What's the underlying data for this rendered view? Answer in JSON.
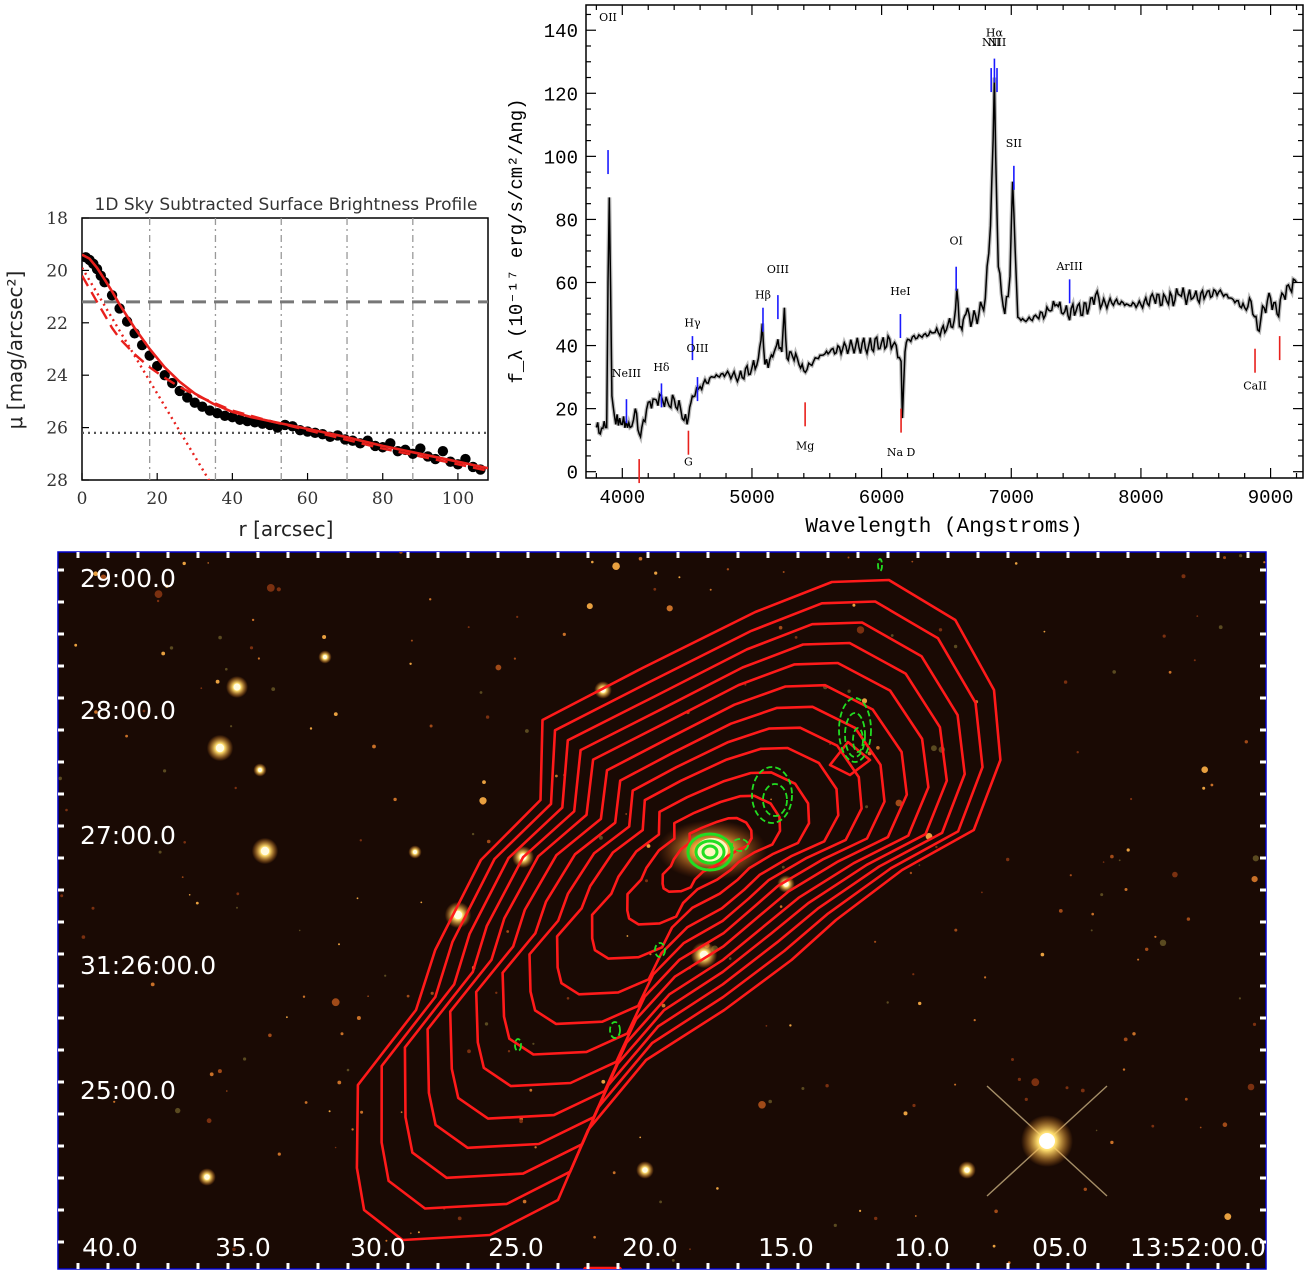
{
  "chart_data": [
    {
      "type": "scatter",
      "title": "1D Sky Subtracted Surface Brightness Profile",
      "xlabel": "r [arcsec]",
      "ylabel": "μ [mag/arcsec²]",
      "xlim": [
        0,
        108
      ],
      "ylim": [
        28,
        18
      ],
      "x_ticks": [
        0,
        20,
        40,
        60,
        80,
        100
      ],
      "y_ticks": [
        18,
        20,
        22,
        24,
        26,
        28
      ],
      "grid": "dash-dot vertical",
      "reference_lines": {
        "dashed": 21.2,
        "dotted": 26.2
      },
      "series": [
        {
          "style": "points",
          "color": "#000000",
          "x": [
            1,
            2,
            3,
            4,
            5,
            6,
            8,
            10,
            12,
            14,
            16,
            18,
            20,
            22,
            24,
            26,
            28,
            30,
            32,
            34,
            36,
            38,
            40,
            42,
            44,
            46,
            48,
            50,
            52,
            54,
            56,
            58,
            60,
            62,
            64,
            66,
            68,
            70,
            72,
            74,
            76,
            78,
            80,
            82,
            84,
            86,
            88,
            90,
            92,
            94,
            96,
            98,
            100,
            102,
            104,
            106
          ],
          "y": [
            19.5,
            19.6,
            19.75,
            19.95,
            20.2,
            20.45,
            20.95,
            21.45,
            21.95,
            22.4,
            22.85,
            23.25,
            23.65,
            24.0,
            24.3,
            24.6,
            24.85,
            25.05,
            25.2,
            25.35,
            25.45,
            25.55,
            25.6,
            25.7,
            25.75,
            25.8,
            25.85,
            25.9,
            26.0,
            25.9,
            25.95,
            26.1,
            26.15,
            26.2,
            26.25,
            26.35,
            26.3,
            26.45,
            26.5,
            26.6,
            26.5,
            26.7,
            26.75,
            26.6,
            26.9,
            26.85,
            27.0,
            26.8,
            27.1,
            27.2,
            26.9,
            27.3,
            27.4,
            27.2,
            27.5,
            27.6
          ]
        },
        {
          "style": "solid",
          "color": "#e8201c",
          "x": [
            0,
            2,
            4,
            6,
            8,
            10,
            14,
            18,
            22,
            26,
            30,
            35,
            40,
            45,
            50,
            60,
            70,
            80,
            90,
            100,
            108
          ],
          "y": [
            19.4,
            19.55,
            19.9,
            20.35,
            20.8,
            21.3,
            22.2,
            23.0,
            23.7,
            24.25,
            24.7,
            25.1,
            25.4,
            25.6,
            25.75,
            26.05,
            26.35,
            26.7,
            27.0,
            27.3,
            27.55
          ]
        },
        {
          "style": "dashed",
          "color": "#e8201c",
          "x": [
            0,
            2,
            4,
            6,
            8,
            10,
            14,
            18,
            22,
            26,
            30,
            35,
            40,
            50,
            60,
            70,
            80,
            90,
            100,
            108
          ],
          "y": [
            20.2,
            20.7,
            21.2,
            21.7,
            22.2,
            22.6,
            23.2,
            23.7,
            24.1,
            24.45,
            24.75,
            25.05,
            25.35,
            25.75,
            26.1,
            26.45,
            26.8,
            27.1,
            27.4,
            27.65
          ]
        },
        {
          "style": "dotted",
          "color": "#e8201c",
          "x": [
            0,
            5,
            10,
            15,
            20,
            25,
            30,
            35
          ],
          "y": [
            19.9,
            21.1,
            22.3,
            23.5,
            24.7,
            25.9,
            27.1,
            28.3
          ]
        }
      ]
    },
    {
      "type": "line",
      "title": "",
      "xlabel": "Wavelength (Angstroms)",
      "ylabel": "f_λ (10⁻¹⁷ erg/s/cm²/Ang)",
      "xlim": [
        3720,
        9250
      ],
      "ylim": [
        -2,
        148
      ],
      "x_ticks": [
        4000,
        5000,
        6000,
        7000,
        8000,
        9000
      ],
      "y_ticks": [
        0,
        20,
        40,
        60,
        80,
        100,
        120,
        140
      ],
      "spectrum": {
        "x": [
          3800,
          3830,
          3860,
          3880,
          3890,
          3900,
          3920,
          3950,
          3980,
          4000,
          4030,
          4060,
          4100,
          4130,
          4150,
          4200,
          4250,
          4300,
          4350,
          4400,
          4450,
          4500,
          4530,
          4560,
          4600,
          4700,
          4800,
          4900,
          5000,
          5050,
          5080,
          5100,
          5150,
          5180,
          5200,
          5230,
          5250,
          5270,
          5300,
          5350,
          5400,
          5450,
          5500,
          5550,
          5600,
          5700,
          5800,
          5900,
          6000,
          6100,
          6150,
          6160,
          6180,
          6200,
          6300,
          6400,
          6500,
          6560,
          6580,
          6600,
          6620,
          6650,
          6700,
          6750,
          6800,
          6840,
          6860,
          6870,
          6880,
          6900,
          6950,
          6990,
          7010,
          7030,
          7050,
          7100,
          7200,
          7300,
          7350,
          7400,
          7500,
          7600,
          7650,
          7700,
          7800,
          7900,
          8000,
          8100,
          8200,
          8300,
          8400,
          8500,
          8600,
          8700,
          8800,
          8850,
          8900,
          8950,
          9000,
          9050,
          9100,
          9150,
          9200
        ],
        "y": [
          14,
          12,
          16,
          14,
          60,
          87,
          24,
          15,
          17,
          15,
          16,
          14,
          20,
          12,
          14,
          22,
          23,
          24,
          22,
          23,
          20,
          15,
          22,
          24,
          27,
          30,
          31,
          30,
          33,
          36,
          47,
          34,
          37,
          39,
          42,
          38,
          52,
          36,
          38,
          36,
          32,
          34,
          36,
          37,
          38,
          39,
          40,
          40,
          41,
          41,
          35,
          17,
          38,
          42,
          43,
          44,
          45,
          48,
          58,
          46,
          45,
          50,
          48,
          50,
          55,
          78,
          105,
          125,
          100,
          65,
          50,
          62,
          92,
          70,
          49,
          48,
          49,
          51,
          53,
          50,
          51,
          52,
          56,
          53,
          54,
          53,
          53,
          55,
          54,
          56,
          55,
          56,
          57,
          55,
          52,
          54,
          45,
          52,
          55,
          50,
          56,
          58,
          60
        ]
      },
      "emission_lines": [
        {
          "label": "OII",
          "wavelength": 3890,
          "y": 102,
          "label_y": 143
        },
        {
          "label": "NeIII",
          "wavelength": 4032,
          "y": 23,
          "label_y": 30
        },
        {
          "label": "Hδ",
          "wavelength": 4302,
          "y": 28,
          "label_y": 32
        },
        {
          "label": "Hγ",
          "wavelength": 4541,
          "y": 43,
          "label_y": 46
        },
        {
          "label": "OIII",
          "wavelength": 4580,
          "y": 30,
          "label_y": 38
        },
        {
          "label": "Hβ",
          "wavelength": 5085,
          "y": 52,
          "label_y": 55
        },
        {
          "label": "OIII",
          "wavelength": 5200,
          "y": 56,
          "label_y": 63
        },
        {
          "label": "HeI",
          "wavelength": 6145,
          "y": 50,
          "label_y": 56
        },
        {
          "label": "OI",
          "wavelength": 6575,
          "y": 65,
          "label_y": 72
        },
        {
          "label": "Hα",
          "wavelength": 6870,
          "y": 131,
          "label_y": 138
        },
        {
          "label": "NII",
          "wavelength": 6845,
          "y": 128,
          "label_y": 135
        },
        {
          "label": "NII",
          "wavelength": 6890,
          "y": 128,
          "label_y": 135
        },
        {
          "label": "SII",
          "wavelength": 7020,
          "y": 97,
          "label_y": 103
        },
        {
          "label": "ArIII",
          "wavelength": 7450,
          "y": 61,
          "label_y": 64
        }
      ],
      "absorption_lines": [
        {
          "label": "",
          "wavelength": 4130,
          "y": 4,
          "label_y": -4
        },
        {
          "label": "G",
          "wavelength": 4510,
          "y": 13,
          "label_y": 2
        },
        {
          "label": "Mg",
          "wavelength": 5410,
          "y": 22,
          "label_y": 7
        },
        {
          "label": "Na D",
          "wavelength": 6150,
          "y": 20,
          "label_y": 5
        },
        {
          "label": "CaII",
          "wavelength": 8880,
          "y": 39,
          "label_y": 26
        },
        {
          "label": "",
          "wavelength": 9070,
          "y": 43,
          "label_y": 34
        }
      ]
    },
    {
      "type": "other",
      "title": "",
      "dec_labels": [
        "29:00.0",
        "28:00.0",
        "27:00.0",
        "31:26:00.0",
        "25:00.0"
      ],
      "ra_labels": [
        "40.0",
        "35.0",
        "30.0",
        "25.0",
        "20.0",
        "15.0",
        "10.0",
        "05.0",
        "13:52:00.0"
      ],
      "contour_color": "#ff1a1a",
      "radio_contour_color": "#22dd22",
      "background": "#1a0a04"
    }
  ]
}
